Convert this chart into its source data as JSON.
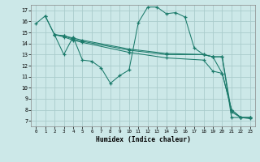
{
  "background_color": "#cce8e8",
  "grid_color": "#aacccc",
  "line_color": "#1a7a6a",
  "xlabel": "Humidex (Indice chaleur)",
  "xlim": [
    -0.5,
    23.5
  ],
  "ylim": [
    6.5,
    17.5
  ],
  "xticks": [
    0,
    1,
    2,
    3,
    4,
    5,
    6,
    7,
    8,
    9,
    10,
    11,
    12,
    13,
    14,
    15,
    16,
    17,
    18,
    19,
    20,
    21,
    22,
    23
  ],
  "yticks": [
    7,
    8,
    9,
    10,
    11,
    12,
    13,
    14,
    15,
    16,
    17
  ],
  "line1_x": [
    0,
    1,
    2,
    3,
    4,
    5,
    6,
    7,
    8,
    9,
    10,
    11,
    12,
    13,
    14,
    15,
    16,
    17,
    18,
    19,
    20,
    21,
    22,
    23
  ],
  "line1_y": [
    15.8,
    16.5,
    14.8,
    13.0,
    14.6,
    12.5,
    12.4,
    11.8,
    10.4,
    11.1,
    11.6,
    15.9,
    17.3,
    17.3,
    16.7,
    16.8,
    16.4,
    13.6,
    13.0,
    12.8,
    11.3,
    8.0,
    7.3,
    7.2
  ],
  "line2_x": [
    1,
    2,
    3,
    4,
    5,
    10,
    14,
    18,
    19,
    20,
    21,
    22,
    23
  ],
  "line2_y": [
    16.5,
    14.8,
    14.7,
    14.5,
    14.3,
    13.5,
    13.1,
    13.0,
    12.8,
    12.8,
    7.3,
    7.3,
    7.3
  ],
  "line3_x": [
    2,
    3,
    4,
    5,
    10,
    14,
    18,
    19,
    20,
    21,
    22,
    23
  ],
  "line3_y": [
    14.8,
    14.7,
    14.4,
    14.2,
    13.4,
    13.0,
    13.0,
    12.8,
    12.8,
    7.8,
    7.3,
    7.3
  ],
  "line4_x": [
    2,
    3,
    4,
    5,
    10,
    14,
    18,
    19,
    20,
    21,
    22,
    23
  ],
  "line4_y": [
    14.8,
    14.6,
    14.3,
    14.1,
    13.2,
    12.7,
    12.5,
    11.5,
    11.3,
    8.0,
    7.3,
    7.3
  ]
}
